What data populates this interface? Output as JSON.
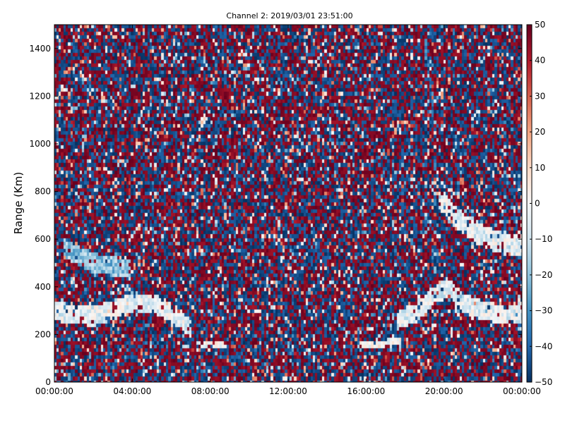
{
  "chart_data": {
    "type": "heatmap",
    "title": "Channel 2: 2019/03/01 23:51:00",
    "xlabel": "",
    "ylabel": "Range (Km)",
    "x_tick_labels": [
      "00:00:00",
      "04:00:00",
      "08:00:00",
      "12:00:00",
      "16:00:00",
      "20:00:00",
      "00:00:00"
    ],
    "x_tick_hours": [
      0,
      4,
      8,
      12,
      16,
      20,
      24
    ],
    "xlim_hours": [
      0,
      24
    ],
    "y_ticks": [
      0,
      200,
      400,
      600,
      800,
      1000,
      1200,
      1400
    ],
    "ylim": [
      0,
      1500
    ],
    "colorbar": {
      "ticks": [
        50,
        40,
        30,
        20,
        10,
        0,
        -10,
        -20,
        -30,
        -40,
        -50
      ],
      "tick_labels": [
        "50",
        "40",
        "30",
        "20",
        "10",
        "0",
        "−10",
        "−20",
        "−30",
        "−40",
        "−50"
      ],
      "vmin": -50,
      "vmax": 50,
      "colormap": "RdBu_r"
    },
    "grid": false,
    "noise": "random values across the full range (-50 to 50) fill the background",
    "features": [
      {
        "name": "echo band left",
        "points_hours_km": [
          [
            0,
            300
          ],
          [
            1,
            280
          ],
          [
            2,
            275
          ],
          [
            3,
            300
          ],
          [
            4,
            330
          ],
          [
            5,
            330
          ],
          [
            5.8,
            300
          ],
          [
            6.3,
            270
          ],
          [
            7,
            230
          ]
        ],
        "value": -5
      },
      {
        "name": "echo band right",
        "points_hours_km": [
          [
            17.6,
            250
          ],
          [
            18.5,
            290
          ],
          [
            19.5,
            360
          ],
          [
            20.3,
            400
          ],
          [
            21,
            330
          ],
          [
            22,
            300
          ],
          [
            23,
            280
          ],
          [
            24,
            290
          ]
        ],
        "value": -5
      },
      {
        "name": "upper streak right",
        "points_hours_km": [
          [
            19.8,
            770
          ],
          [
            20.5,
            700
          ],
          [
            21.3,
            650
          ],
          [
            22.3,
            600
          ],
          [
            23.2,
            580
          ],
          [
            24,
            570
          ]
        ],
        "value": -5
      },
      {
        "name": "faint band upper left",
        "points_hours_km": [
          [
            0.5,
            560
          ],
          [
            2,
            500
          ],
          [
            4,
            470
          ]
        ],
        "value": -20
      },
      {
        "name": "diagonal blue streak",
        "points_hours_km": [
          [
            19,
            1450
          ],
          [
            19.5,
            1100
          ],
          [
            19.6,
            800
          ],
          [
            19.5,
            600
          ],
          [
            19.3,
            420
          ]
        ],
        "value": -38
      },
      {
        "name": "white bar 1",
        "points_hours_km": [
          [
            7.5,
            155
          ],
          [
            8.8,
            155
          ]
        ],
        "value": 0
      },
      {
        "name": "white bar 2",
        "points_hours_km": [
          [
            15.7,
            150
          ],
          [
            17.8,
            170
          ]
        ],
        "value": 0
      }
    ]
  }
}
